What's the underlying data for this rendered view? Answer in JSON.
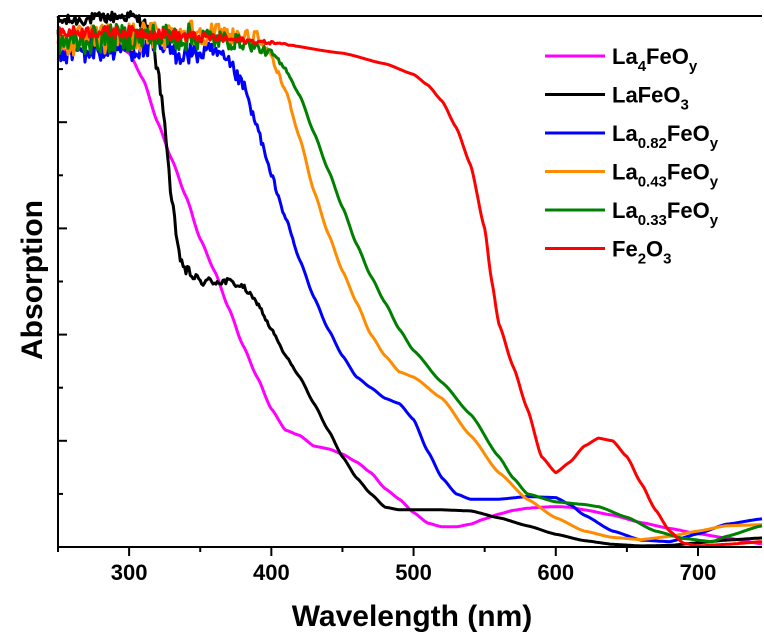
{
  "chart_data": {
    "type": "line",
    "xlabel": "Wavelength (nm)",
    "ylabel": "Absorption",
    "xlim": [
      250,
      745
    ],
    "ylim": [
      0,
      100
    ],
    "x_ticks": [
      300,
      400,
      500,
      600,
      700
    ],
    "y_ticks_count": 10,
    "legend_position": "top-right",
    "grid": false,
    "series": [
      {
        "name": "La4FeOy",
        "label_parts": [
          {
            "t": "La"
          },
          {
            "t": "4",
            "sub": true
          },
          {
            "t": "FeO"
          },
          {
            "t": "y",
            "sub": true
          }
        ],
        "color": "#ff00ff",
        "noise": 0.0,
        "points": [
          [
            250,
            93
          ],
          [
            270,
            95
          ],
          [
            290,
            95
          ],
          [
            300,
            93
          ],
          [
            310,
            88
          ],
          [
            320,
            80
          ],
          [
            330,
            73
          ],
          [
            340,
            66
          ],
          [
            350,
            58
          ],
          [
            360,
            52
          ],
          [
            370,
            45
          ],
          [
            380,
            38
          ],
          [
            390,
            32
          ],
          [
            400,
            26
          ],
          [
            410,
            22
          ],
          [
            420,
            21
          ],
          [
            430,
            19
          ],
          [
            440,
            18.5
          ],
          [
            450,
            17.5
          ],
          [
            460,
            16
          ],
          [
            470,
            14
          ],
          [
            480,
            11
          ],
          [
            490,
            9
          ],
          [
            500,
            6.5
          ],
          [
            510,
            4.5
          ],
          [
            520,
            3.8
          ],
          [
            530,
            3.8
          ],
          [
            540,
            4.3
          ],
          [
            550,
            5.3
          ],
          [
            560,
            6.2
          ],
          [
            570,
            6.9
          ],
          [
            580,
            7.3
          ],
          [
            590,
            7.5
          ],
          [
            600,
            7.6
          ],
          [
            610,
            7.5
          ],
          [
            620,
            7
          ],
          [
            640,
            6
          ],
          [
            660,
            4.6
          ],
          [
            680,
            3.5
          ],
          [
            700,
            2.5
          ],
          [
            720,
            1.7
          ],
          [
            745,
            0.6
          ]
        ]
      },
      {
        "name": "LaFeO3",
        "label_parts": [
          {
            "t": "LaFeO"
          },
          {
            "t": "3",
            "sub": true
          }
        ],
        "color": "#000000",
        "noise": 0.5,
        "points": [
          [
            250,
            99
          ],
          [
            300,
            100
          ],
          [
            310,
            99
          ],
          [
            315,
            96
          ],
          [
            320,
            90
          ],
          [
            325,
            80
          ],
          [
            330,
            65
          ],
          [
            335,
            55
          ],
          [
            340,
            52
          ],
          [
            350,
            50
          ],
          [
            360,
            50
          ],
          [
            370,
            50
          ],
          [
            380,
            49
          ],
          [
            390,
            46
          ],
          [
            400,
            41
          ],
          [
            410,
            36
          ],
          [
            420,
            32
          ],
          [
            430,
            27
          ],
          [
            440,
            22
          ],
          [
            450,
            17
          ],
          [
            460,
            13
          ],
          [
            470,
            10
          ],
          [
            480,
            7.5
          ],
          [
            490,
            7
          ],
          [
            500,
            7
          ],
          [
            520,
            7
          ],
          [
            540,
            6.8
          ],
          [
            560,
            5.5
          ],
          [
            580,
            4
          ],
          [
            600,
            2.4
          ],
          [
            620,
            1.2
          ],
          [
            640,
            0.5
          ],
          [
            660,
            0.2
          ],
          [
            680,
            0.3
          ],
          [
            700,
            0.8
          ],
          [
            720,
            1.3
          ],
          [
            745,
            1.7
          ]
        ]
      },
      {
        "name": "La0.82FeOy",
        "label_parts": [
          {
            "t": "La"
          },
          {
            "t": "0.82",
            "sub": true
          },
          {
            "t": "FeO"
          },
          {
            "t": "y",
            "sub": true
          }
        ],
        "color": "#0000ff",
        "noise": 1.1,
        "points": [
          [
            250,
            93
          ],
          [
            300,
            94
          ],
          [
            320,
            94
          ],
          [
            340,
            93
          ],
          [
            350,
            93
          ],
          [
            360,
            93
          ],
          [
            370,
            91
          ],
          [
            380,
            87
          ],
          [
            390,
            79
          ],
          [
            400,
            70
          ],
          [
            410,
            62
          ],
          [
            420,
            54
          ],
          [
            430,
            47
          ],
          [
            440,
            41
          ],
          [
            450,
            36
          ],
          [
            460,
            32
          ],
          [
            470,
            30
          ],
          [
            480,
            28
          ],
          [
            490,
            27
          ],
          [
            500,
            24
          ],
          [
            510,
            18
          ],
          [
            520,
            13
          ],
          [
            530,
            10
          ],
          [
            540,
            9
          ],
          [
            560,
            9
          ],
          [
            580,
            9.5
          ],
          [
            600,
            9.3
          ],
          [
            610,
            8
          ],
          [
            620,
            6
          ],
          [
            640,
            3
          ],
          [
            660,
            1.3
          ],
          [
            680,
            1
          ],
          [
            700,
            2.5
          ],
          [
            720,
            4.3
          ],
          [
            745,
            5.3
          ]
        ]
      },
      {
        "name": "La0.43FeOy",
        "label_parts": [
          {
            "t": "La"
          },
          {
            "t": "0.43",
            "sub": true
          },
          {
            "t": "FeO"
          },
          {
            "t": "y",
            "sub": true
          }
        ],
        "color": "#ff8c00",
        "noise": 1.3,
        "points": [
          [
            250,
            95
          ],
          [
            300,
            96
          ],
          [
            350,
            97
          ],
          [
            390,
            96
          ],
          [
            395,
            94
          ],
          [
            400,
            92
          ],
          [
            410,
            86
          ],
          [
            420,
            77
          ],
          [
            430,
            67
          ],
          [
            440,
            59
          ],
          [
            450,
            52
          ],
          [
            460,
            46
          ],
          [
            470,
            40
          ],
          [
            480,
            36
          ],
          [
            490,
            33
          ],
          [
            500,
            32
          ],
          [
            520,
            28
          ],
          [
            540,
            21
          ],
          [
            560,
            14
          ],
          [
            580,
            9
          ],
          [
            600,
            5.5
          ],
          [
            620,
            3
          ],
          [
            640,
            1.8
          ],
          [
            660,
            1.4
          ],
          [
            680,
            2
          ],
          [
            700,
            3
          ],
          [
            720,
            4
          ],
          [
            745,
            4.2
          ]
        ]
      },
      {
        "name": "La0.33FeOy",
        "label_parts": [
          {
            "t": "La"
          },
          {
            "t": "0.33",
            "sub": true
          },
          {
            "t": "FeO"
          },
          {
            "t": "y",
            "sub": true
          }
        ],
        "color": "#008000",
        "noise": 1.2,
        "points": [
          [
            250,
            95
          ],
          [
            300,
            96
          ],
          [
            350,
            96
          ],
          [
            380,
            95
          ],
          [
            400,
            93
          ],
          [
            410,
            90
          ],
          [
            420,
            85
          ],
          [
            430,
            78
          ],
          [
            440,
            71
          ],
          [
            450,
            64
          ],
          [
            460,
            57
          ],
          [
            470,
            51
          ],
          [
            480,
            46
          ],
          [
            490,
            41
          ],
          [
            500,
            37
          ],
          [
            520,
            31
          ],
          [
            540,
            25
          ],
          [
            560,
            17
          ],
          [
            570,
            13
          ],
          [
            580,
            10
          ],
          [
            600,
            8.5
          ],
          [
            620,
            8
          ],
          [
            630,
            7.6
          ],
          [
            650,
            5.6
          ],
          [
            670,
            3
          ],
          [
            690,
            1.6
          ],
          [
            710,
            1
          ],
          [
            720,
            2
          ],
          [
            745,
            4
          ]
        ]
      },
      {
        "name": "Fe2O3",
        "label_parts": [
          {
            "t": "Fe"
          },
          {
            "t": "2",
            "sub": true
          },
          {
            "t": "O"
          },
          {
            "t": "3",
            "sub": true
          }
        ],
        "color": "#ff0000",
        "noise": 0.5,
        "points": [
          [
            250,
            97
          ],
          [
            300,
            97
          ],
          [
            350,
            96
          ],
          [
            400,
            95
          ],
          [
            450,
            93
          ],
          [
            480,
            91
          ],
          [
            500,
            89
          ],
          [
            510,
            87
          ],
          [
            520,
            84
          ],
          [
            530,
            79
          ],
          [
            540,
            72
          ],
          [
            550,
            60
          ],
          [
            555,
            50
          ],
          [
            560,
            42
          ],
          [
            570,
            34
          ],
          [
            580,
            26
          ],
          [
            590,
            17
          ],
          [
            600,
            14
          ],
          [
            610,
            16
          ],
          [
            620,
            19
          ],
          [
            630,
            20.5
          ],
          [
            640,
            20
          ],
          [
            650,
            17
          ],
          [
            660,
            12
          ],
          [
            670,
            7
          ],
          [
            680,
            3
          ],
          [
            690,
            0.7
          ],
          [
            700,
            0.2
          ],
          [
            720,
            0.5
          ],
          [
            745,
            1
          ]
        ]
      }
    ]
  }
}
